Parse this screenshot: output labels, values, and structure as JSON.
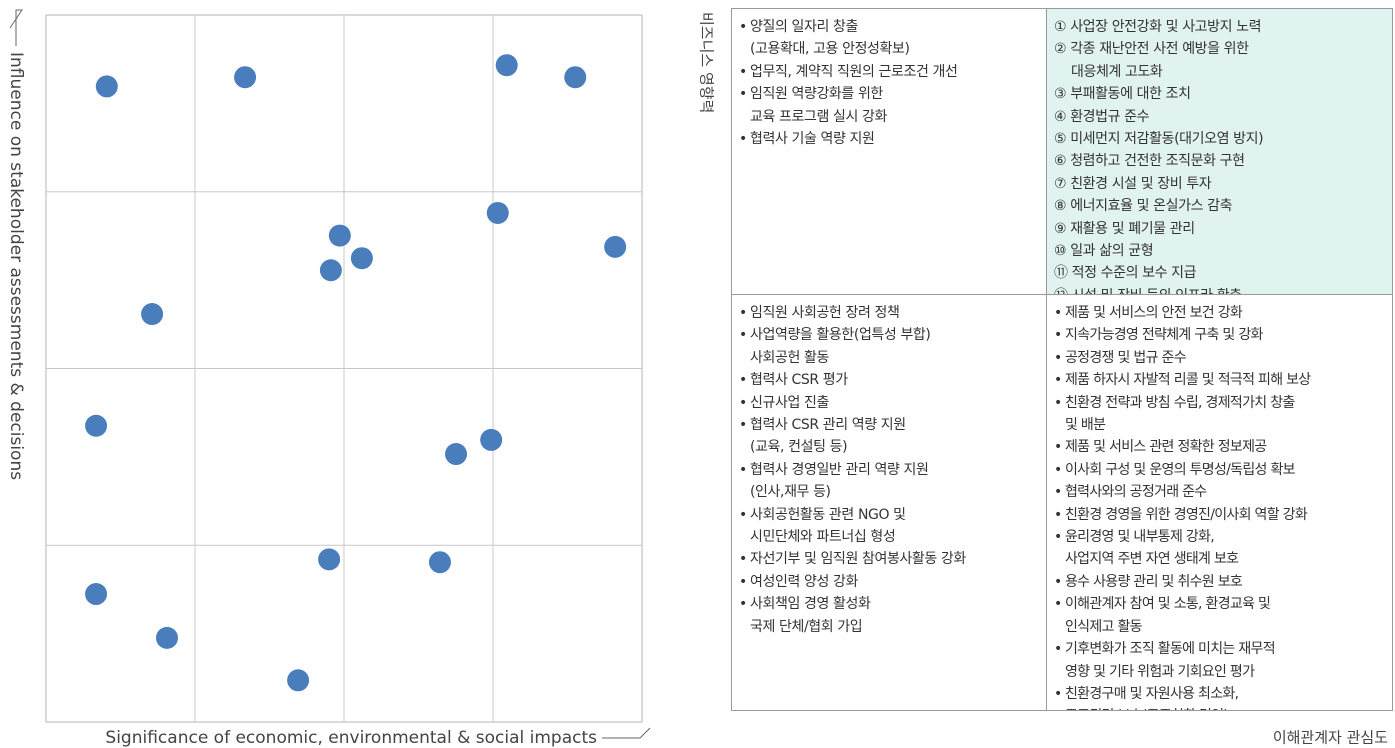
{
  "chart_data": {
    "type": "scatter",
    "x_label": "Significance of economic, environmental & social impacts",
    "y_label": "Influence on stakeholder assessments & decisions",
    "color": "#4a7dbb",
    "xlim": [
      0,
      100
    ],
    "ylim": [
      0,
      100
    ],
    "xticks": [
      25,
      50,
      75
    ],
    "yticks": [
      25,
      50,
      75
    ],
    "grid": true,
    "x": [
      10.2,
      33.4,
      77.3,
      88.8,
      75.8,
      49.3,
      53.0,
      47.8,
      95.5,
      17.8,
      8.4,
      74.7,
      68.8,
      47.5,
      66.1,
      8.4,
      20.3,
      42.3
    ],
    "values": [
      89.9,
      91.2,
      92.9,
      91.2,
      72.0,
      68.8,
      65.6,
      63.9,
      67.2,
      57.7,
      41.9,
      39.9,
      37.9,
      23.0,
      22.6,
      18.1,
      11.9,
      5.9
    ]
  },
  "matrix": {
    "y_label": "비즈니스 영향력",
    "x_label": "이해관계자 관심도",
    "quadrants": [
      {
        "items": [
          [
            "양질의 일자리 창출",
            "(고용확대, 고용 안정성확보)"
          ],
          [
            "업무직, 계약직 직원의 근로조건 개선"
          ],
          [
            "임직원 역량강화를 위한",
            "교육 프로그램 실시 강화"
          ],
          [
            "협력사 기술 역량 지원"
          ]
        ]
      },
      {
        "items": [
          [
            "① 사업장 안전강화 및 사고방지 노력"
          ],
          [
            "② 각종 재난안전 사전 예방을 위한",
            "대응체계 고도화"
          ],
          [
            "③ 부패활동에 대한 조치"
          ],
          [
            "④ 환경법규 준수"
          ],
          [
            "⑤ 미세먼지 저감활동(대기오염 방지)"
          ],
          [
            "⑥ 청렴하고 건전한 조직문화 구현"
          ],
          [
            "⑦ 친환경 시설 및 장비 투자"
          ],
          [
            "⑧ 에너지효율 및 온실가스 감축"
          ],
          [
            "⑨ 재활용 및 폐기물 관리"
          ],
          [
            "⑩ 일과 삶의 균형"
          ],
          [
            "⑪ 적정 수준의 보수 지급"
          ],
          [
            "⑫ 시설 및 장비 등의 인프라 확충"
          ]
        ]
      },
      {
        "items": [
          [
            "임직원 사회공헌 장려 정책"
          ],
          [
            "사업역량을 활용한(업특성 부합)",
            "사회공헌 활동"
          ],
          [
            "협력사 CSR 평가"
          ],
          [
            "신규사업 진출"
          ],
          [
            "협력사 CSR 관리 역량 지원",
            "(교육, 컨설팅 등)"
          ],
          [
            "협력사 경영일반 관리 역량 지원",
            "(인사,재무 등)"
          ],
          [
            "사회공헌활동 관련 NGO 및",
            "시민단체와 파트너십 형성"
          ],
          [
            "자선기부 및 임직원 참여봉사활동 강화"
          ],
          [
            "여성인력 양성 강화"
          ],
          [
            "사회책임 경영 활성화",
            "국제 단체/협회 가입"
          ]
        ]
      },
      {
        "items": [
          [
            "제품 및 서비스의 안전 보건 강화"
          ],
          [
            "지속가능경영 전략체계 구축 및 강화"
          ],
          [
            "공정경쟁 및 법규 준수"
          ],
          [
            "제품 하자시 자발적 리콜 및 적극적 피해 보상"
          ],
          [
            "친환경 전략과 방침 수립, 경제적가치 창출",
            "및 배분"
          ],
          [
            "제품 및 서비스 관련 정확한 정보제공"
          ],
          [
            "이사회 구성 및 운영의 투명성/독립성 확보"
          ],
          [
            "협력사와의 공정거래 준수"
          ],
          [
            "친환경 경영을 위한 경영진/이사회 역할 강화"
          ],
          [
            "윤리경영 및 내부통제 강화,",
            "사업지역 주변 자연 생태계 보호"
          ],
          [
            "용수 사용량 관리 및 취수원 보호"
          ],
          [
            "이해관계자 참여 및 소통, 환경교육 및",
            "인식제고 활동"
          ],
          [
            "기후변화가 조직 활동에 미치는 재무적",
            "영향 및 기타 위험과 기회요인 평가"
          ],
          [
            "친환경구매 및 자원사용 최소화,",
            "주주권리 보호(주주친화 경영)"
          ]
        ]
      }
    ]
  }
}
